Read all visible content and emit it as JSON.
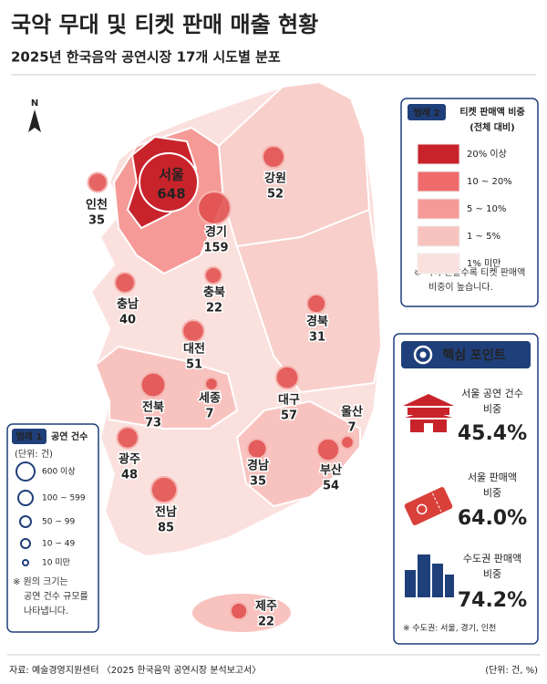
{
  "header": {
    "title": "국악 무대 및 티켓 판매 매출 현황",
    "subtitle": "2025년 한국음악 공연시장 17개 시도별 분포"
  },
  "compass": "N",
  "map": {
    "regions": [
      {
        "name": "서울",
        "count": 648
      },
      {
        "name": "인천",
        "count": 35
      },
      {
        "name": "강원",
        "count": 52
      },
      {
        "name": "경기",
        "count": 159
      },
      {
        "name": "충남",
        "count": 40
      },
      {
        "name": "충북",
        "count": 22
      },
      {
        "name": "경북",
        "count": 31
      },
      {
        "name": "대전",
        "count": 51
      },
      {
        "name": "세종",
        "count": 7
      },
      {
        "name": "전북",
        "count": 73
      },
      {
        "name": "대구",
        "count": 57
      },
      {
        "name": "울산",
        "count": 7
      },
      {
        "name": "광주",
        "count": 48
      },
      {
        "name": "경남",
        "count": 35
      },
      {
        "name": "부산",
        "count": 54
      },
      {
        "name": "전남",
        "count": 85
      },
      {
        "name": "제주",
        "count": 22
      }
    ]
  },
  "legend_share": {
    "badge": "범례 2",
    "title": [
      "티켓 판매액 비중",
      "(전체 대비)"
    ],
    "items": [
      {
        "label": "20% 이상",
        "color": "#c8232b"
      },
      {
        "label": "10 ~ 20%",
        "color": "#ef6b6b"
      },
      {
        "label": "5 ~ 10%",
        "color": "#f59a96"
      },
      {
        "label": "1 ~ 5%",
        "color": "#f8c3bf"
      },
      {
        "label": "1% 미만",
        "color": "#fbe1de"
      }
    ],
    "note": [
      "※ 색이 진할수록 티켓 판매액",
      "비중이 높습니다."
    ]
  },
  "legend_count": {
    "badge": "범례 1",
    "title": "공연 건수",
    "unit": "(단위: 건)",
    "items": [
      "600 이상",
      "100 ~ 599",
      "50 ~ 99",
      "10 ~ 49",
      "10 미만"
    ],
    "note": [
      "※ 원의 크기는",
      "공연 건수 규모를",
      "나타냅니다."
    ]
  },
  "key_points": {
    "title": "핵심 포인트",
    "items": [
      {
        "label": [
          "서울 공연 건수",
          "비중"
        ],
        "value": "45.4%"
      },
      {
        "label": [
          "서울 판매액",
          "비중"
        ],
        "value": "64.0%"
      },
      {
        "label": [
          "수도권 판매액",
          "비중"
        ],
        "value": "74.2%"
      }
    ],
    "note": "※ 수도권: 서울, 경기, 인천"
  },
  "footer": {
    "source": "자료: 예술경영지원센터 〈2025 한국음악 공연시장 분석보고서〉",
    "unit": "(단위: 건, %)"
  }
}
